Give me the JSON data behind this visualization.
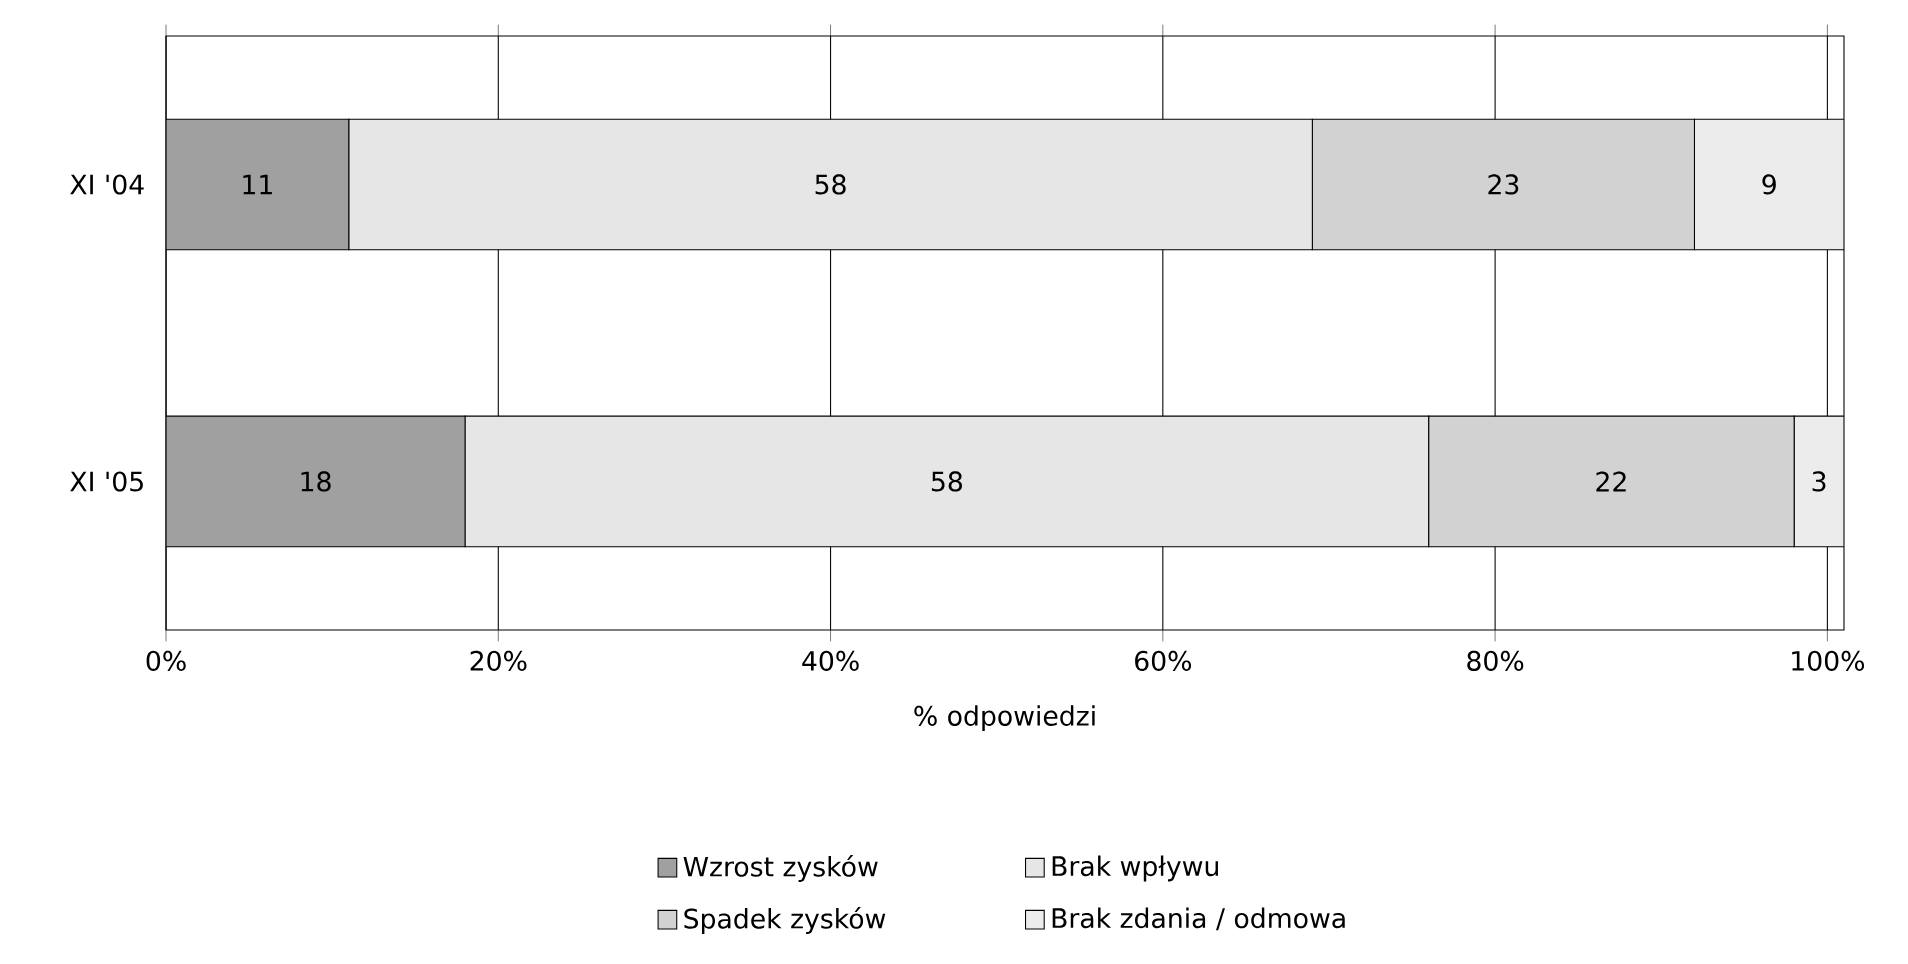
{
  "chart_data": {
    "type": "bar",
    "orientation": "horizontal",
    "stacked": true,
    "categories": [
      "XI '04",
      "XI '05"
    ],
    "series": [
      {
        "name": "Wzrost zysków",
        "color": "#a0a0a0",
        "values": [
          11,
          18
        ]
      },
      {
        "name": "Brak wpływu",
        "color": "#e6e6e6",
        "values": [
          58,
          58
        ]
      },
      {
        "name": "Spadek zysków",
        "color": "#d2d2d2",
        "values": [
          23,
          22
        ]
      },
      {
        "name": "Brak zdania / odmowa",
        "color": "#ececec",
        "values": [
          9,
          3
        ]
      }
    ],
    "xlabel": "% odpowiedzi",
    "xlim": [
      0,
      101
    ],
    "xticks": [
      {
        "value": 0,
        "label": "0%"
      },
      {
        "value": 20,
        "label": "20%"
      },
      {
        "value": 40,
        "label": "40%"
      },
      {
        "value": 60,
        "label": "60%"
      },
      {
        "value": 80,
        "label": "80%"
      },
      {
        "value": 100,
        "label": "100%"
      }
    ],
    "grid": "x",
    "data_labels": true,
    "legend": "bottom"
  }
}
